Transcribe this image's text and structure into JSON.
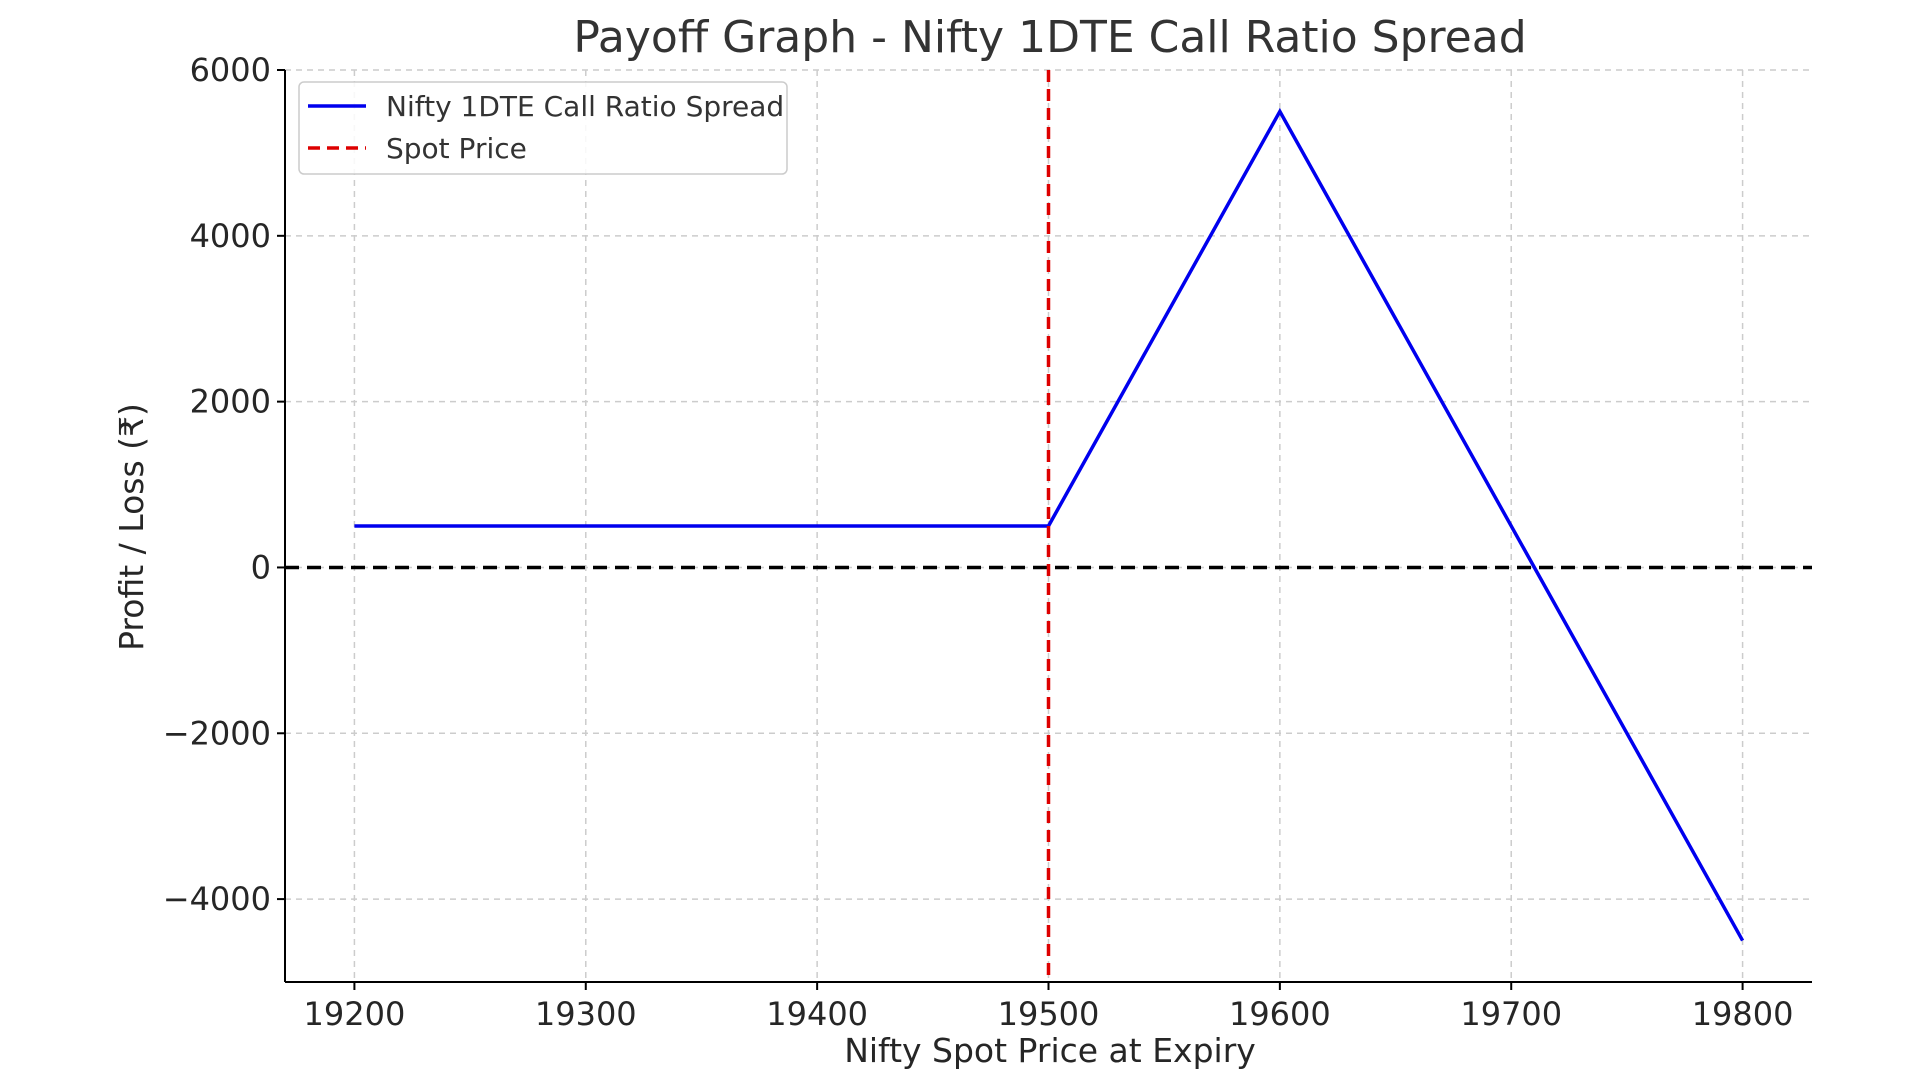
{
  "chart_data": {
    "type": "line",
    "title": "Payoff Graph - Nifty 1DTE Call Ratio Spread",
    "xlabel": "Nifty Spot Price at Expiry",
    "ylabel": "Profit / Loss (₹)",
    "xlim": [
      19170,
      19830
    ],
    "ylim": [
      -5000,
      6000
    ],
    "xticks": [
      19200,
      19300,
      19400,
      19500,
      19600,
      19700,
      19800
    ],
    "xtick_labels": [
      "19200",
      "19300",
      "19400",
      "19500",
      "19600",
      "19700",
      "19800"
    ],
    "yticks": [
      6000,
      4000,
      2000,
      0,
      -2000,
      -4000
    ],
    "ytick_labels": [
      "6000",
      "4000",
      "2000",
      "0",
      "−2000",
      "−4000"
    ],
    "grid": true,
    "legend_position": "top-left",
    "series": [
      {
        "name": "Nifty 1DTE Call Ratio Spread",
        "color": "#0000ee",
        "style": "solid",
        "x": [
          19200,
          19500,
          19600,
          19800
        ],
        "y": [
          500,
          500,
          5500,
          -4500
        ]
      }
    ],
    "vertical_lines": [
      {
        "name": "Spot Price",
        "x": 19500,
        "color": "#dd0000",
        "style": "dashed"
      }
    ],
    "horizontal_lines": [
      {
        "y": 0,
        "color": "#000000",
        "style": "dashed"
      }
    ]
  }
}
